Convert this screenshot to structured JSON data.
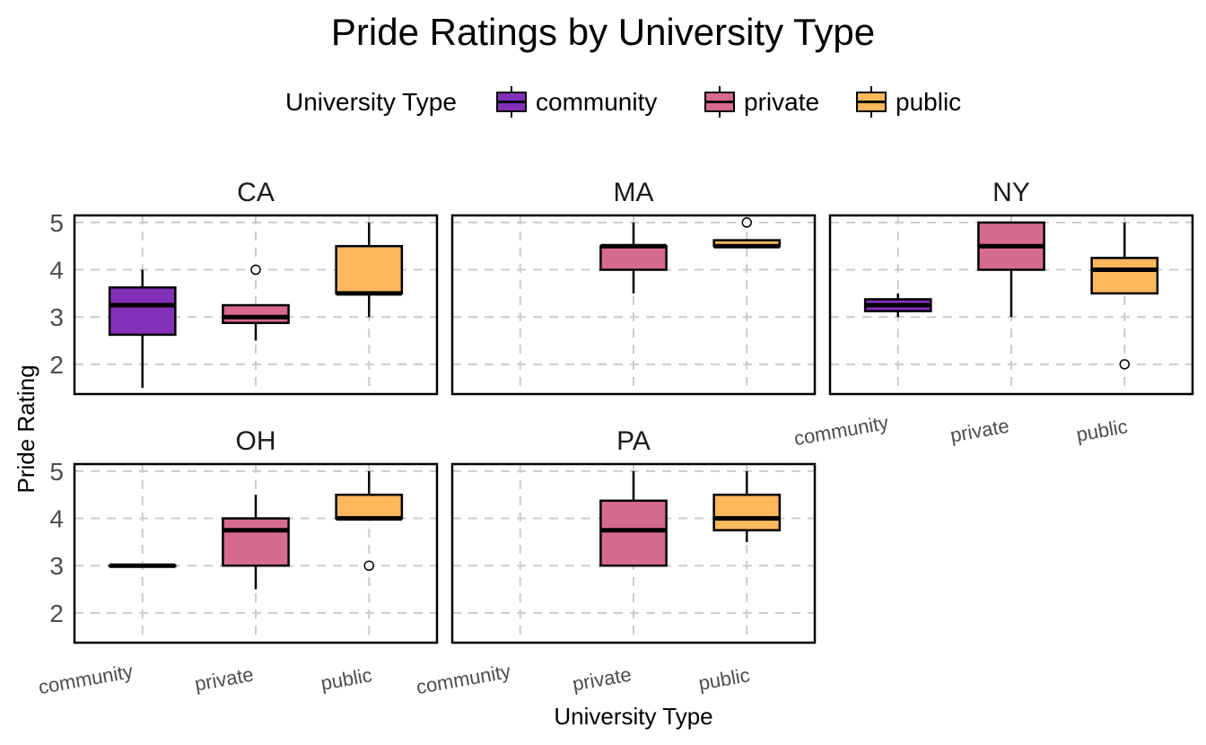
{
  "chart_data": {
    "type": "boxplot",
    "title": "Pride Ratings by University Type",
    "xlabel": "University Type",
    "ylabel": "Pride Rating",
    "ylim": [
      1.37,
      5.15
    ],
    "yticks": [
      2,
      3,
      4,
      5
    ],
    "grid": true,
    "legend": {
      "title": "University Type",
      "placement": "top",
      "entries": [
        {
          "label": "community",
          "color": "#8330b8"
        },
        {
          "label": "private",
          "color": "#d66a91"
        },
        {
          "label": "public",
          "color": "#fdb85c"
        }
      ]
    },
    "categories": [
      "community",
      "private",
      "public"
    ],
    "facets": [
      {
        "name": "CA",
        "boxes": [
          {
            "category": "community",
            "lower": 1.5,
            "q1": 2.625,
            "median": 3.25,
            "q3": 3.625,
            "upper": 4.0,
            "outliers": []
          },
          {
            "category": "private",
            "lower": 2.5,
            "q1": 2.875,
            "median": 3.0,
            "q3": 3.25,
            "upper": 3.25,
            "outliers": [
              4.0
            ]
          },
          {
            "category": "public",
            "lower": 3.0,
            "q1": 3.5,
            "median": 3.5,
            "q3": 4.5,
            "upper": 5.0,
            "outliers": []
          }
        ]
      },
      {
        "name": "MA",
        "boxes": [
          {
            "category": "private",
            "lower": 3.5,
            "q1": 4.0,
            "median": 4.5,
            "q3": 4.5,
            "upper": 5.0,
            "outliers": []
          },
          {
            "category": "public",
            "lower": 4.5,
            "q1": 4.5,
            "median": 4.5,
            "q3": 4.625,
            "upper": 4.625,
            "outliers": [
              5.0
            ]
          }
        ]
      },
      {
        "name": "NY",
        "boxes": [
          {
            "category": "community",
            "lower": 3.0,
            "q1": 3.125,
            "median": 3.25,
            "q3": 3.375,
            "upper": 3.5,
            "outliers": []
          },
          {
            "category": "private",
            "lower": 3.0,
            "q1": 4.0,
            "median": 4.5,
            "q3": 5.0,
            "upper": 5.0,
            "outliers": []
          },
          {
            "category": "public",
            "lower": 3.5,
            "q1": 3.5,
            "median": 4.0,
            "q3": 4.25,
            "upper": 5.0,
            "outliers": [
              2.0
            ]
          }
        ]
      },
      {
        "name": "OH",
        "boxes": [
          {
            "category": "community",
            "lower": 3.0,
            "q1": 3.0,
            "median": 3.0,
            "q3": 3.0,
            "upper": 3.0,
            "outliers": []
          },
          {
            "category": "private",
            "lower": 2.5,
            "q1": 3.0,
            "median": 3.75,
            "q3": 4.0,
            "upper": 4.5,
            "outliers": []
          },
          {
            "category": "public",
            "lower": 4.0,
            "q1": 4.0,
            "median": 4.0,
            "q3": 4.5,
            "upper": 5.0,
            "outliers": [
              3.0
            ]
          }
        ]
      },
      {
        "name": "PA",
        "boxes": [
          {
            "category": "private",
            "lower": 3.0,
            "q1": 3.0,
            "median": 3.75,
            "q3": 4.375,
            "upper": 5.0,
            "outliers": []
          },
          {
            "category": "public",
            "lower": 3.5,
            "q1": 3.75,
            "median": 4.0,
            "q3": 4.5,
            "upper": 5.0,
            "outliers": []
          }
        ]
      }
    ]
  }
}
